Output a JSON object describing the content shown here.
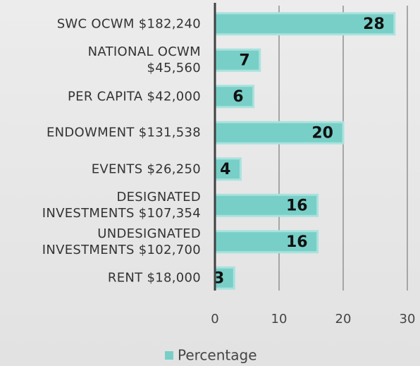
{
  "chart_data": {
    "type": "bar",
    "orientation": "horizontal",
    "categories": [
      "SWC OCWM  $182,240",
      "NATIONAL OCWM\n$45,560",
      "PER CAPITA $42,000",
      "ENDOWMENT $131,538",
      "EVENTS $26,250",
      "DESIGNATED\nINVESTMENTS $107,354",
      "UNDESIGNATED\nINVESTMENTS  $102,700",
      "RENT $18,000"
    ],
    "series": [
      {
        "name": "Percentage",
        "color": "#78cfc8",
        "values": [
          28,
          7,
          6,
          20,
          4,
          16,
          16,
          3
        ]
      }
    ],
    "xlim": [
      0,
      30
    ],
    "xticks": [
      0,
      10,
      20,
      30
    ],
    "grid": true,
    "legend": "bottom"
  }
}
